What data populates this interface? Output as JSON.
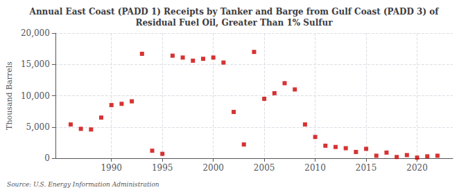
{
  "chart_data": {
    "type": "scatter",
    "title": "Annual East Coast (PADD 1) Receipts by Tanker and Barge from Gulf Coast (PADD 3) of\nResidual Fuel Oil, Greater Than 1% Sulfur",
    "ylabel": "Thousand Barrels",
    "annotations": [
      "Source: U.S. Energy Information Administration"
    ],
    "x": [
      1986,
      1987,
      1988,
      1989,
      1990,
      1991,
      1992,
      1993,
      1994,
      1995,
      1996,
      1997,
      1998,
      1999,
      2000,
      2001,
      2002,
      2003,
      2004,
      2005,
      2006,
      2007,
      2008,
      2009,
      2010,
      2011,
      2012,
      2013,
      2014,
      2015,
      2016,
      2017,
      2018,
      2019,
      2020,
      2021,
      2022
    ],
    "values": [
      5400,
      4700,
      4600,
      6500,
      8500,
      8700,
      9100,
      16700,
      1200,
      700,
      16400,
      16100,
      15600,
      15900,
      16100,
      15300,
      7400,
      2200,
      17000,
      9500,
      10400,
      12000,
      11000,
      5400,
      3400,
      2000,
      1800,
      1600,
      1000,
      1500,
      400,
      900,
      200,
      500,
      100,
      300,
      400
    ],
    "color": "#cc0000",
    "marker": "square",
    "xlim": [
      1984.5,
      2023.5
    ],
    "xticks": [
      1990,
      1995,
      2000,
      2005,
      2010,
      2015,
      2020
    ],
    "ylim": [
      0,
      20000
    ],
    "yticks": [
      0,
      {
        "value": 5000,
        "label": "5,000"
      },
      {
        "value": 10000,
        "label": "10,000"
      },
      {
        "value": 15000,
        "label": "15,000"
      },
      {
        "value": 20000,
        "label": "20,000"
      }
    ],
    "grid": true
  }
}
